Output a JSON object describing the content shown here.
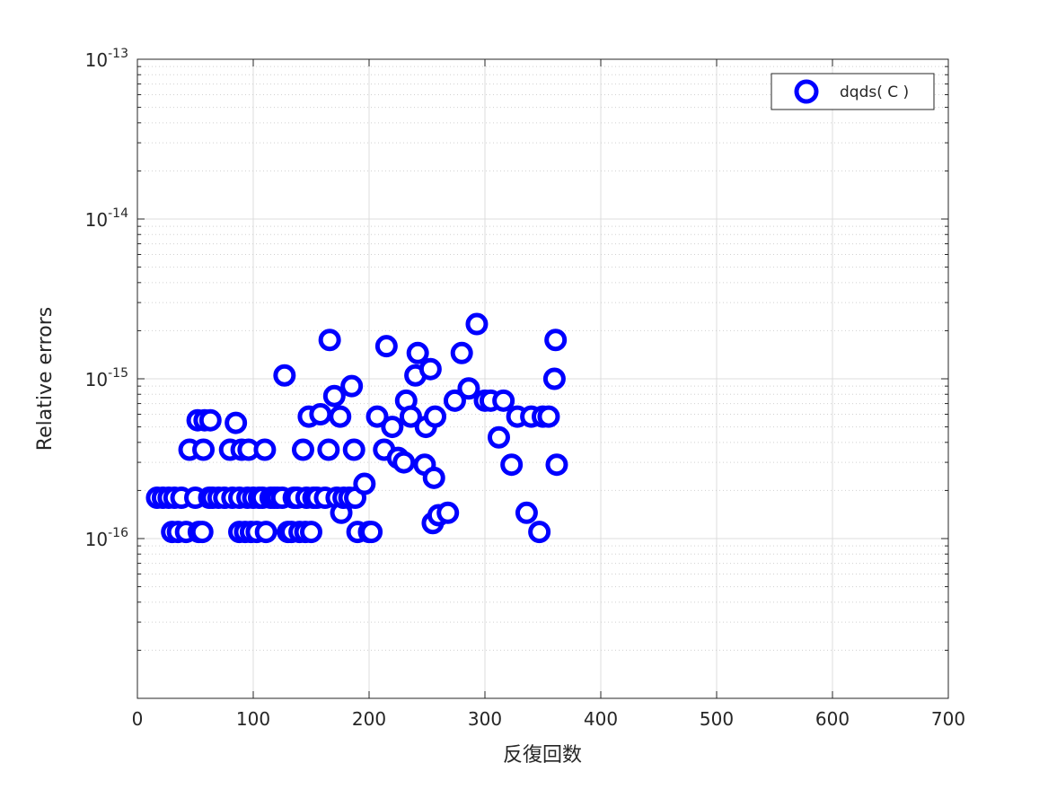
{
  "chart_data": {
    "type": "scatter",
    "title": "",
    "xlabel": "反復回数",
    "ylabel": "Relative errors",
    "xlim": [
      0,
      700
    ],
    "ylim": [
      1e-17,
      1e-13
    ],
    "yscale": "log",
    "grid": true,
    "minor_grid": true,
    "legend_position": "top-right",
    "x_ticks": [
      "0",
      "100",
      "200",
      "300",
      "400",
      "500",
      "600",
      "700"
    ],
    "y_ticks": [
      {
        "base": "10",
        "exp": "-16",
        "value": 1e-16
      },
      {
        "base": "10",
        "exp": "-15",
        "value": 1e-15
      },
      {
        "base": "10",
        "exp": "-14",
        "value": 1e-14
      },
      {
        "base": "10",
        "exp": "-13",
        "value": 1e-13
      }
    ],
    "series": [
      {
        "name": "dqds( C )",
        "color": "#0000ff",
        "marker": "open-circle",
        "points": [
          [
            17,
            1.8e-16
          ],
          [
            22,
            1.8e-16
          ],
          [
            27,
            1.8e-16
          ],
          [
            30,
            1.1e-16
          ],
          [
            32,
            1.8e-16
          ],
          [
            35,
            1.1e-16
          ],
          [
            38,
            1.8e-16
          ],
          [
            42,
            1.1e-16
          ],
          [
            45,
            3.6e-16
          ],
          [
            50,
            1.8e-16
          ],
          [
            52,
            5.5e-16
          ],
          [
            53,
            1.1e-16
          ],
          [
            56,
            1.1e-16
          ],
          [
            57,
            3.6e-16
          ],
          [
            58,
            5.5e-16
          ],
          [
            62,
            1.8e-16
          ],
          [
            63,
            5.5e-16
          ],
          [
            65,
            1.8e-16
          ],
          [
            70,
            1.8e-16
          ],
          [
            75,
            1.8e-16
          ],
          [
            80,
            3.6e-16
          ],
          [
            82,
            1.8e-16
          ],
          [
            85,
            5.3e-16
          ],
          [
            88,
            1.8e-16
          ],
          [
            88,
            1.1e-16
          ],
          [
            90,
            3.6e-16
          ],
          [
            93,
            1.1e-16
          ],
          [
            95,
            1.8e-16
          ],
          [
            96,
            3.6e-16
          ],
          [
            98,
            1.1e-16
          ],
          [
            100,
            1.8e-16
          ],
          [
            103,
            1.1e-16
          ],
          [
            105,
            1.8e-16
          ],
          [
            108,
            1.8e-16
          ],
          [
            110,
            3.6e-16
          ],
          [
            111,
            1.1e-16
          ],
          [
            115,
            1.8e-16
          ],
          [
            118,
            1.8e-16
          ],
          [
            121,
            1.8e-16
          ],
          [
            125,
            1.8e-16
          ],
          [
            127,
            1.05e-15
          ],
          [
            130,
            1.1e-16
          ],
          [
            133,
            1.1e-16
          ],
          [
            135,
            1.8e-16
          ],
          [
            138,
            1.8e-16
          ],
          [
            140,
            1.1e-16
          ],
          [
            143,
            3.6e-16
          ],
          [
            145,
            1.1e-16
          ],
          [
            146,
            1.8e-16
          ],
          [
            148,
            5.8e-16
          ],
          [
            150,
            1.1e-16
          ],
          [
            152,
            1.8e-16
          ],
          [
            155,
            1.8e-16
          ],
          [
            158,
            6e-16
          ],
          [
            162,
            1.8e-16
          ],
          [
            165,
            3.6e-16
          ],
          [
            166,
            1.75e-15
          ],
          [
            170,
            7.8e-16
          ],
          [
            172,
            1.8e-16
          ],
          [
            175,
            5.8e-16
          ],
          [
            176,
            1.45e-16
          ],
          [
            178,
            1.8e-16
          ],
          [
            183,
            1.8e-16
          ],
          [
            185,
            9e-16
          ],
          [
            187,
            3.6e-16
          ],
          [
            188,
            1.8e-16
          ],
          [
            190,
            1.1e-16
          ],
          [
            196,
            2.2e-16
          ],
          [
            200,
            1.1e-16
          ],
          [
            202,
            1.1e-16
          ],
          [
            207,
            5.8e-16
          ],
          [
            213,
            3.6e-16
          ],
          [
            215,
            1.6e-15
          ],
          [
            220,
            5e-16
          ],
          [
            225,
            3.2e-16
          ],
          [
            230,
            3e-16
          ],
          [
            232,
            7.3e-16
          ],
          [
            236,
            5.8e-16
          ],
          [
            240,
            1.05e-15
          ],
          [
            242,
            1.45e-15
          ],
          [
            248,
            2.9e-16
          ],
          [
            249,
            5e-16
          ],
          [
            253,
            1.15e-15
          ],
          [
            255,
            1.25e-16
          ],
          [
            256,
            2.4e-16
          ],
          [
            257,
            5.8e-16
          ],
          [
            260,
            1.4e-16
          ],
          [
            268,
            1.45e-16
          ],
          [
            274,
            7.3e-16
          ],
          [
            280,
            1.45e-15
          ],
          [
            286,
            8.7e-16
          ],
          [
            293,
            2.2e-15
          ],
          [
            300,
            7.3e-16
          ],
          [
            305,
            7.3e-16
          ],
          [
            312,
            4.3e-16
          ],
          [
            316,
            7.3e-16
          ],
          [
            323,
            2.9e-16
          ],
          [
            328,
            5.8e-16
          ],
          [
            336,
            1.45e-16
          ],
          [
            340,
            5.8e-16
          ],
          [
            347,
            1.1e-16
          ],
          [
            350,
            5.8e-16
          ],
          [
            355,
            5.8e-16
          ],
          [
            360,
            1e-15
          ],
          [
            361,
            1.75e-15
          ],
          [
            362,
            2.9e-16
          ]
        ]
      }
    ]
  }
}
